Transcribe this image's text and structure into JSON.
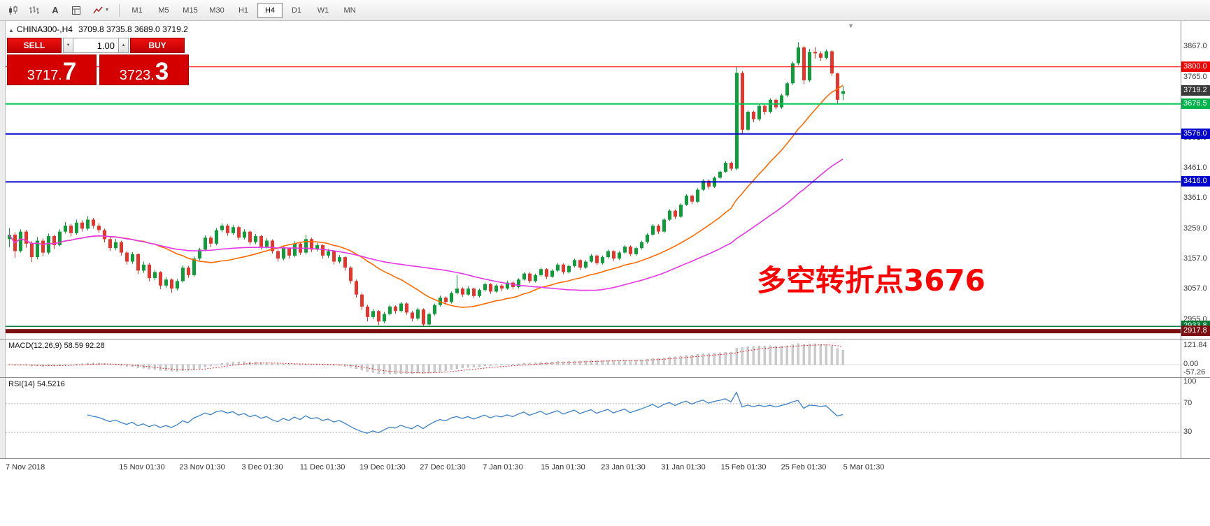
{
  "toolbar": {
    "timeframes": [
      "M1",
      "M5",
      "M15",
      "M30",
      "H1",
      "H4",
      "D1",
      "W1",
      "MN"
    ],
    "active_timeframe": "H4",
    "icon_names": [
      "candlestick-chart-icon",
      "bar-chart-icon",
      "text-tool-icon",
      "template-icon",
      "indicators-dropdown-icon"
    ],
    "text_tool_glyph": "A"
  },
  "icons": {
    "caret_down": "▼",
    "caret_up": "▲",
    "shift_marker": "▼",
    "symbol_marker": "▲"
  },
  "symbol_bar": {
    "symbol": "CHINA300-,H4",
    "ohlc": "3709.8 3735.8 3689.0 3719.2"
  },
  "trade_widget": {
    "sell_label": "SELL",
    "buy_label": "BUY",
    "volume": "1.00",
    "sell_price_main": "3717.",
    "sell_price_pip": "7",
    "buy_price_main": "3723.",
    "buy_price_pip": "3"
  },
  "annotation": {
    "text": "多空转折点3676",
    "color": "#ff0000"
  },
  "price_axis": {
    "ticks": [
      3867.0,
      3765.0,
      3663.0,
      3561.0,
      3461.0,
      3361.0,
      3259.0,
      3157.0,
      3057.0,
      2955.0
    ],
    "levels": [
      {
        "price": 3800.0,
        "label": "3800.0",
        "color": "#ff0000",
        "stroke": 1.2,
        "badge": "#ee0000"
      },
      {
        "price": 3676.5,
        "label": "3676.5",
        "color": "#00c853",
        "stroke": 2,
        "badge": "#00b34a"
      },
      {
        "price": 3576.0,
        "label": "3576.0",
        "color": "#0000cd",
        "stroke": 2,
        "badge": "#0000cd"
      },
      {
        "price": 3416.0,
        "label": "3416.0",
        "color": "#0000cd",
        "stroke": 2,
        "badge": "#0000cd"
      },
      {
        "price": 2933.8,
        "label": "2933.8",
        "color": "#007a33",
        "stroke": 1.5,
        "badge": "#007a33"
      },
      {
        "price": 2917.8,
        "label": "2917.8",
        "color": "#7b1113",
        "stroke": 6,
        "badge": "#7b1113"
      }
    ],
    "current": {
      "price": 3719.2,
      "label": "3719.2",
      "bg": "#3a3a3a"
    }
  },
  "macd_panel": {
    "title": "MACD(12,26,9) 58.59 92.28",
    "axis": [
      "121.84",
      "0.00",
      "-57.26"
    ],
    "params": {
      "fast": 12,
      "slow": 26,
      "signal": 9
    },
    "values": {
      "macd": 58.59,
      "signal": 92.28
    }
  },
  "rsi_panel": {
    "title": "RSI(14) 54.5216",
    "axis": [
      100,
      70,
      30
    ],
    "period": 14,
    "levels": [
      70,
      30
    ],
    "value": 54.5216
  },
  "time_axis": [
    "7 Nov 2018",
    "15 Nov 01:30",
    "23 Nov 01:30",
    "3 Dec 01:30",
    "11 Dec 01:30",
    "19 Dec 01:30",
    "27 Dec 01:30",
    "7 Jan 01:30",
    "15 Jan 01:30",
    "23 Jan 01:30",
    "31 Jan 01:30",
    "15 Feb 01:30",
    "25 Feb 01:30",
    "5 Mar 01:30"
  ],
  "chart_data": {
    "type": "candlestick",
    "symbol": "CHINA300-",
    "timeframe": "H4",
    "ohlc_current": {
      "open": 3709.8,
      "high": 3735.8,
      "low": 3689.0,
      "close": 3719.2
    },
    "price_range": {
      "top": 3953.2,
      "bottom": 2890.0
    },
    "colors": {
      "up": "#0f9d3a",
      "down": "#e7352b"
    },
    "overlays": [
      {
        "name": "ma-fast",
        "type": "sma",
        "period": 20,
        "color": "#ff6a00"
      },
      {
        "name": "ma-slow",
        "type": "sma",
        "period": 45,
        "color": "#e438e4"
      }
    ],
    "candles": [
      [
        3225,
        3262,
        3198,
        3240
      ],
      [
        3240,
        3248,
        3162,
        3185
      ],
      [
        3185,
        3258,
        3180,
        3250
      ],
      [
        3250,
        3256,
        3196,
        3210
      ],
      [
        3210,
        3218,
        3148,
        3165
      ],
      [
        3165,
        3232,
        3158,
        3220
      ],
      [
        3220,
        3228,
        3168,
        3180
      ],
      [
        3180,
        3244,
        3174,
        3235
      ],
      [
        3235,
        3240,
        3192,
        3205
      ],
      [
        3205,
        3258,
        3200,
        3250
      ],
      [
        3250,
        3282,
        3244,
        3270
      ],
      [
        3270,
        3276,
        3234,
        3245
      ],
      [
        3245,
        3290,
        3240,
        3280
      ],
      [
        3280,
        3288,
        3250,
        3260
      ],
      [
        3260,
        3302,
        3254,
        3290
      ],
      [
        3290,
        3296,
        3260,
        3270
      ],
      [
        3270,
        3278,
        3246,
        3255
      ],
      [
        3255,
        3260,
        3214,
        3225
      ],
      [
        3225,
        3232,
        3186,
        3195
      ],
      [
        3195,
        3226,
        3188,
        3215
      ],
      [
        3215,
        3220,
        3170,
        3180
      ],
      [
        3180,
        3186,
        3140,
        3150
      ],
      [
        3150,
        3182,
        3142,
        3175
      ],
      [
        3175,
        3178,
        3108,
        3120
      ],
      [
        3120,
        3150,
        3112,
        3140
      ],
      [
        3140,
        3146,
        3084,
        3095
      ],
      [
        3095,
        3122,
        3088,
        3115
      ],
      [
        3115,
        3118,
        3058,
        3070
      ],
      [
        3070,
        3098,
        3062,
        3090
      ],
      [
        3090,
        3094,
        3046,
        3060
      ],
      [
        3060,
        3092,
        3054,
        3085
      ],
      [
        3085,
        3138,
        3080,
        3130
      ],
      [
        3130,
        3136,
        3096,
        3105
      ],
      [
        3105,
        3168,
        3100,
        3160
      ],
      [
        3160,
        3196,
        3154,
        3190
      ],
      [
        3190,
        3238,
        3184,
        3230
      ],
      [
        3230,
        3236,
        3198,
        3210
      ],
      [
        3210,
        3262,
        3204,
        3255
      ],
      [
        3255,
        3278,
        3248,
        3270
      ],
      [
        3270,
        3276,
        3236,
        3245
      ],
      [
        3245,
        3272,
        3240,
        3265
      ],
      [
        3265,
        3270,
        3222,
        3230
      ],
      [
        3230,
        3258,
        3224,
        3250
      ],
      [
        3250,
        3254,
        3206,
        3215
      ],
      [
        3215,
        3242,
        3208,
        3235
      ],
      [
        3235,
        3240,
        3190,
        3200
      ],
      [
        3200,
        3228,
        3194,
        3220
      ],
      [
        3220,
        3224,
        3176,
        3185
      ],
      [
        3185,
        3190,
        3150,
        3160
      ],
      [
        3160,
        3202,
        3154,
        3195
      ],
      [
        3195,
        3198,
        3160,
        3170
      ],
      [
        3170,
        3218,
        3164,
        3210
      ],
      [
        3210,
        3214,
        3172,
        3180
      ],
      [
        3180,
        3240,
        3174,
        3225
      ],
      [
        3225,
        3230,
        3182,
        3190
      ],
      [
        3190,
        3212,
        3184,
        3205
      ],
      [
        3205,
        3208,
        3160,
        3170
      ],
      [
        3170,
        3192,
        3162,
        3185
      ],
      [
        3185,
        3188,
        3140,
        3150
      ],
      [
        3150,
        3172,
        3144,
        3165
      ],
      [
        3165,
        3168,
        3120,
        3130
      ],
      [
        3130,
        3134,
        3076,
        3085
      ],
      [
        3085,
        3090,
        3030,
        3040
      ],
      [
        3040,
        3046,
        2988,
        3000
      ],
      [
        3000,
        3006,
        2950,
        2965
      ],
      [
        2965,
        2992,
        2958,
        2985
      ],
      [
        2985,
        2988,
        2938,
        2950
      ],
      [
        2950,
        2982,
        2944,
        2975
      ],
      [
        2975,
        3006,
        2970,
        3000
      ],
      [
        3000,
        3004,
        2976,
        2985
      ],
      [
        2985,
        3016,
        2980,
        3010
      ],
      [
        3010,
        3014,
        2972,
        2980
      ],
      [
        2980,
        2986,
        2950,
        2960
      ],
      [
        2960,
        2996,
        2954,
        2990
      ],
      [
        2990,
        2994,
        2933,
        2940
      ],
      [
        2940,
        2980,
        2936,
        2975
      ],
      [
        2975,
        3010,
        2970,
        3005
      ],
      [
        3005,
        3036,
        3000,
        3030
      ],
      [
        3030,
        3034,
        3006,
        3015
      ],
      [
        3015,
        3050,
        3010,
        3045
      ],
      [
        3045,
        3105,
        3040,
        3060
      ],
      [
        3060,
        3064,
        3032,
        3040
      ],
      [
        3040,
        3068,
        3036,
        3060
      ],
      [
        3060,
        3063,
        3028,
        3035
      ],
      [
        3035,
        3060,
        3030,
        3055
      ],
      [
        3055,
        3080,
        3050,
        3075
      ],
      [
        3075,
        3078,
        3042,
        3050
      ],
      [
        3050,
        3075,
        3046,
        3070
      ],
      [
        3070,
        3074,
        3052,
        3060
      ],
      [
        3060,
        3086,
        3056,
        3080
      ],
      [
        3080,
        3084,
        3058,
        3065
      ],
      [
        3065,
        3095,
        3060,
        3090
      ],
      [
        3090,
        3115,
        3086,
        3110
      ],
      [
        3110,
        3114,
        3078,
        3085
      ],
      [
        3085,
        3110,
        3080,
        3105
      ],
      [
        3105,
        3130,
        3100,
        3125
      ],
      [
        3125,
        3128,
        3092,
        3100
      ],
      [
        3100,
        3125,
        3096,
        3120
      ],
      [
        3120,
        3145,
        3116,
        3140
      ],
      [
        3140,
        3144,
        3108,
        3115
      ],
      [
        3115,
        3140,
        3110,
        3135
      ],
      [
        3135,
        3160,
        3130,
        3155
      ],
      [
        3155,
        3158,
        3122,
        3130
      ],
      [
        3130,
        3155,
        3126,
        3150
      ],
      [
        3150,
        3175,
        3146,
        3170
      ],
      [
        3170,
        3174,
        3138,
        3145
      ],
      [
        3145,
        3170,
        3140,
        3165
      ],
      [
        3165,
        3190,
        3160,
        3185
      ],
      [
        3185,
        3188,
        3152,
        3160
      ],
      [
        3160,
        3185,
        3156,
        3180
      ],
      [
        3180,
        3205,
        3176,
        3200
      ],
      [
        3200,
        3204,
        3168,
        3175
      ],
      [
        3175,
        3200,
        3170,
        3195
      ],
      [
        3195,
        3220,
        3190,
        3215
      ],
      [
        3215,
        3245,
        3210,
        3240
      ],
      [
        3240,
        3275,
        3236,
        3270
      ],
      [
        3270,
        3274,
        3242,
        3250
      ],
      [
        3250,
        3295,
        3246,
        3290
      ],
      [
        3290,
        3325,
        3286,
        3320
      ],
      [
        3320,
        3324,
        3292,
        3300
      ],
      [
        3300,
        3345,
        3296,
        3340
      ],
      [
        3340,
        3375,
        3336,
        3370
      ],
      [
        3370,
        3374,
        3342,
        3350
      ],
      [
        3350,
        3395,
        3346,
        3390
      ],
      [
        3390,
        3425,
        3386,
        3420
      ],
      [
        3420,
        3424,
        3392,
        3400
      ],
      [
        3400,
        3435,
        3396,
        3430
      ],
      [
        3430,
        3455,
        3426,
        3450
      ],
      [
        3450,
        3485,
        3446,
        3480
      ],
      [
        3480,
        3484,
        3452,
        3460
      ],
      [
        3460,
        3800,
        3455,
        3780
      ],
      [
        3780,
        3786,
        3576,
        3590
      ],
      [
        3590,
        3655,
        3585,
        3650
      ],
      [
        3650,
        3654,
        3615,
        3625
      ],
      [
        3625,
        3675,
        3620,
        3670
      ],
      [
        3670,
        3674,
        3640,
        3650
      ],
      [
        3650,
        3695,
        3645,
        3690
      ],
      [
        3690,
        3694,
        3658,
        3665
      ],
      [
        3665,
        3710,
        3660,
        3705
      ],
      [
        3705,
        3750,
        3700,
        3745
      ],
      [
        3745,
        3818,
        3740,
        3812
      ],
      [
        3812,
        3882,
        3806,
        3865
      ],
      [
        3865,
        3870,
        3742,
        3755
      ],
      [
        3755,
        3860,
        3750,
        3850
      ],
      [
        3850,
        3866,
        3828,
        3845
      ],
      [
        3845,
        3852,
        3820,
        3830
      ],
      [
        3830,
        3858,
        3825,
        3852
      ],
      [
        3852,
        3856,
        3770,
        3778
      ],
      [
        3778,
        3780,
        3676.5,
        3690
      ],
      [
        3709.8,
        3735.8,
        3689.0,
        3719.2
      ]
    ]
  }
}
